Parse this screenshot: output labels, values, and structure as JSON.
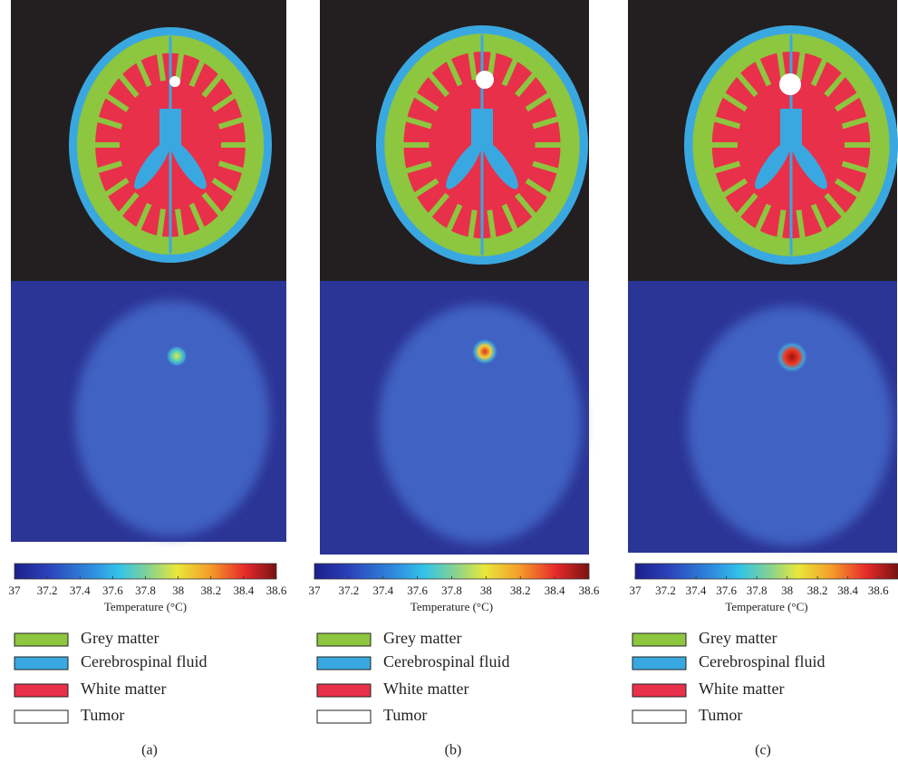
{
  "panels": [
    {
      "caption": "(a)",
      "colorbar": {
        "label": "Temperature (°C)",
        "lim": [
          37,
          38.6
        ],
        "ticks": [
          37,
          37.2,
          37.4,
          37.6,
          37.8,
          38,
          38.2,
          38.4,
          38.6
        ]
      },
      "legend": [
        {
          "label": "Grey matter",
          "color": "#8dc63f"
        },
        {
          "label": "Cerebrospinal fluid",
          "color": "#3aa8e0"
        },
        {
          "label": "White matter",
          "color": "#e8304a"
        },
        {
          "label": "Tumor",
          "color": "#ffffff"
        }
      ]
    },
    {
      "caption": "(b)",
      "colorbar": {
        "label": "Temperature (°C)",
        "lim": [
          37,
          38.6
        ],
        "ticks": [
          37,
          37.2,
          37.4,
          37.6,
          37.8,
          38,
          38.2,
          38.4,
          38.6
        ]
      },
      "legend": [
        {
          "label": "Grey matter",
          "color": "#8dc63f"
        },
        {
          "label": "Cerebrospinal fluid",
          "color": "#3aa8e0"
        },
        {
          "label": "White matter",
          "color": "#e8304a"
        },
        {
          "label": "Tumor",
          "color": "#ffffff"
        }
      ]
    },
    {
      "caption": "(c)",
      "colorbar": {
        "label": "Temperature (°C)",
        "lim": [
          37,
          38.73
        ],
        "ticks": [
          37,
          37.2,
          37.4,
          37.6,
          37.8,
          38,
          38.2,
          38.4,
          38.6
        ]
      },
      "legend": [
        {
          "label": "Grey matter",
          "color": "#8dc63f"
        },
        {
          "label": "Cerebrospinal fluid",
          "color": "#3aa8e0"
        },
        {
          "label": "White matter",
          "color": "#e8304a"
        },
        {
          "label": "Tumor",
          "color": "#ffffff"
        }
      ]
    }
  ]
}
